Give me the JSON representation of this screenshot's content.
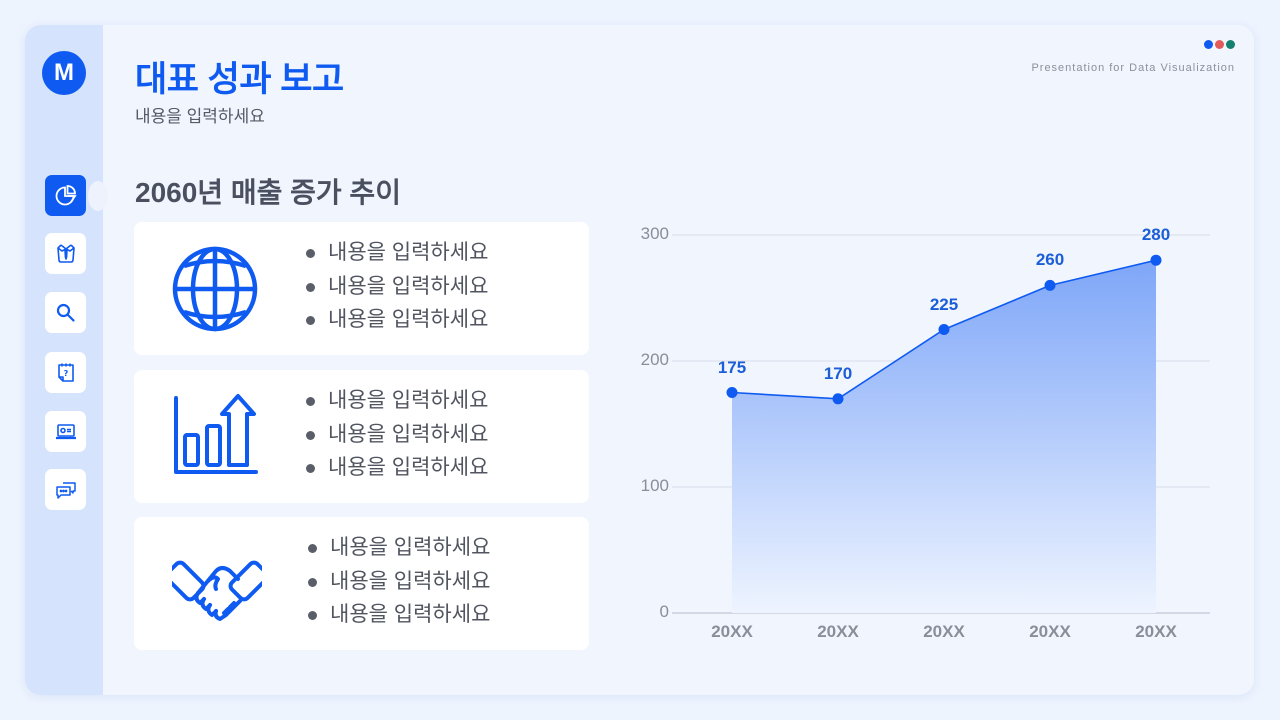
{
  "header": {
    "title": "대표 성과 보고",
    "subtitle": "내용을 입력하세요",
    "tagline": "Presentation for Data Visualization",
    "dot_colors": [
      "#0f5bf1",
      "#e25b5b",
      "#14806f"
    ]
  },
  "sidebar": {
    "logo_letter": "M",
    "items": [
      {
        "icon": "pie-chart-icon",
        "active": true
      },
      {
        "icon": "shirt-tie-icon",
        "active": false
      },
      {
        "icon": "search-icon",
        "active": false
      },
      {
        "icon": "question-note-icon",
        "active": false
      },
      {
        "icon": "laptop-id-icon",
        "active": false
      },
      {
        "icon": "chat-bubbles-icon",
        "active": false
      }
    ]
  },
  "section": {
    "title": "2060년 매출 증가 추이"
  },
  "cards": [
    {
      "icon": "globe-icon",
      "bullets": [
        "내용을 입력하세요",
        "내용을 입력하세요",
        "내용을 입력하세요"
      ]
    },
    {
      "icon": "growth-bar-chart-icon",
      "bullets": [
        "내용을 입력하세요",
        "내용을 입력하세요",
        "내용을 입력하세요"
      ]
    },
    {
      "icon": "handshake-icon",
      "bullets": [
        "내용을 입력하세요",
        "내용을 입력하세요",
        "내용을 입력하세요"
      ]
    }
  ],
  "colors": {
    "accent": "#0f5bf1",
    "sidebar_bg": "#d6e3fd",
    "panel_bg": "#f1f5fe",
    "text_muted": "#8a8e98"
  },
  "chart_data": {
    "type": "area",
    "title": "2060년 매출 증가 추이",
    "categories": [
      "20XX",
      "20XX",
      "20XX",
      "20XX",
      "20XX"
    ],
    "values": [
      175,
      170,
      225,
      260,
      280
    ],
    "data_labels": [
      "175",
      "170",
      "225",
      "260",
      "280"
    ],
    "y_ticks": [
      "0",
      "100",
      "200",
      "300"
    ],
    "ylim": [
      0,
      300
    ],
    "xlabel": "",
    "ylabel": "",
    "grid": true,
    "legend": "none",
    "line_color": "#0f5bf1",
    "fill_gradient": [
      "#7ea6f8",
      "#eef4ff"
    ]
  }
}
